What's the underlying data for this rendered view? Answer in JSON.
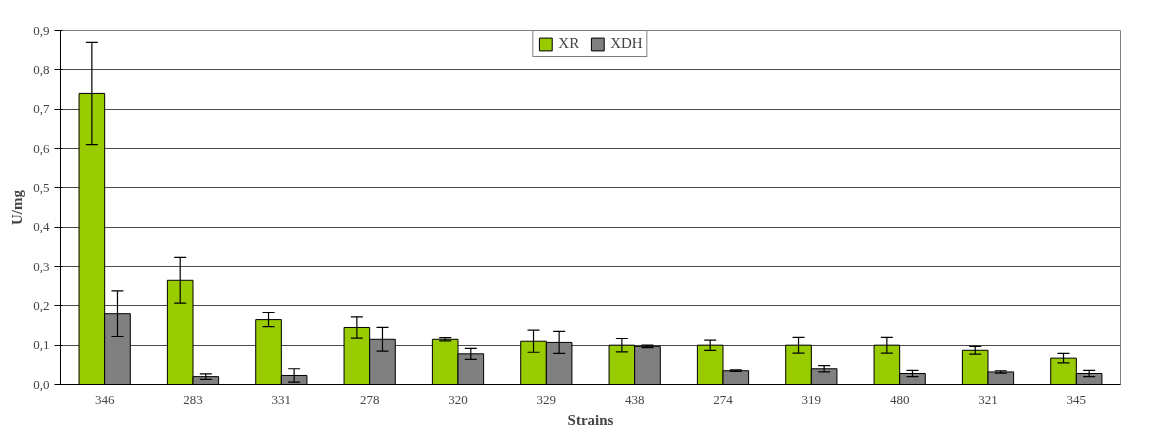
{
  "chart_data": {
    "type": "bar",
    "xlabel": "Strains",
    "ylabel": "U/mg",
    "categories": [
      "346",
      "283",
      "331",
      "278",
      "320",
      "329",
      "438",
      "274",
      "319",
      "480",
      "321",
      "345"
    ],
    "series": [
      {
        "name": "XR",
        "color": "#99cc00",
        "values": [
          0.74,
          0.265,
          0.165,
          0.145,
          0.115,
          0.11,
          0.1,
          0.1,
          0.1,
          0.1,
          0.087,
          0.067
        ],
        "errors": [
          0.13,
          0.058,
          0.018,
          0.027,
          0.004,
          0.028,
          0.017,
          0.013,
          0.02,
          0.02,
          0.01,
          0.012
        ]
      },
      {
        "name": "XDH",
        "color": "#808080",
        "values": [
          0.18,
          0.02,
          0.023,
          0.115,
          0.078,
          0.107,
          0.097,
          0.035,
          0.04,
          0.028,
          0.032,
          0.028
        ],
        "errors": [
          0.058,
          0.007,
          0.017,
          0.03,
          0.014,
          0.028,
          0.003,
          0.002,
          0.008,
          0.008,
          0.003,
          0.008
        ]
      }
    ],
    "ylim": [
      0,
      0.9
    ],
    "yticks": [
      {
        "value": 0,
        "label": "0,0"
      },
      {
        "value": 0.1,
        "label": "0,1"
      },
      {
        "value": 0.2,
        "label": "0,2"
      },
      {
        "value": 0.3,
        "label": "0,3"
      },
      {
        "value": 0.4,
        "label": "0,4"
      },
      {
        "value": 0.5,
        "label": "0,5"
      },
      {
        "value": 0.6,
        "label": "0,6"
      },
      {
        "value": 0.7,
        "label": "0,7"
      },
      {
        "value": 0.8,
        "label": "0,8"
      },
      {
        "value": 0.9,
        "label": "0,9"
      }
    ],
    "grid": "y",
    "legend": "top"
  }
}
